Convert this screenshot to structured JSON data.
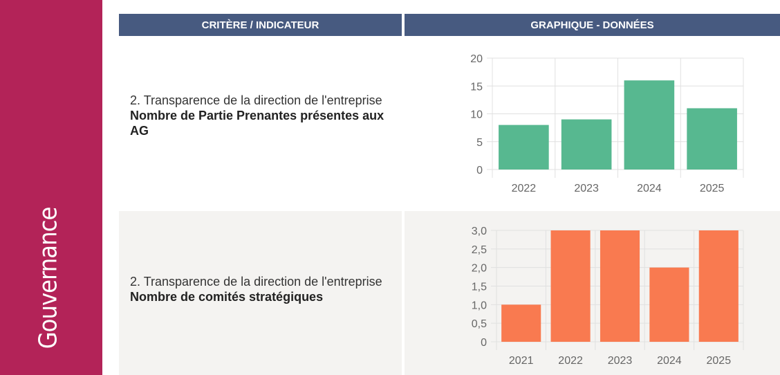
{
  "sidebar": {
    "label": "Gouvernance",
    "color": "#b32358"
  },
  "header": {
    "col1": "CRITÈRE / INDICATEUR",
    "col2": "GRAPHIQUE - DONNÉES",
    "color": "#475a80"
  },
  "rows": [
    {
      "criterion": "2. Transparence de la direction de l'entreprise",
      "indicator": "Nombre de Partie Prenantes présentes aux AG"
    },
    {
      "criterion": "2. Transparence de la direction de l'entreprise",
      "indicator": "Nombre de comités stratégiques"
    }
  ],
  "chart_data": [
    {
      "type": "bar",
      "categories": [
        "2022",
        "2023",
        "2024",
        "2025"
      ],
      "values": [
        8,
        9,
        16,
        11
      ],
      "ylim": [
        0,
        20
      ],
      "yticks": [
        "0",
        "5",
        "10",
        "15",
        "20"
      ],
      "color": "#57b890",
      "grid": true
    },
    {
      "type": "bar",
      "categories": [
        "2021",
        "2022",
        "2023",
        "2024",
        "2025"
      ],
      "values": [
        1,
        3,
        3,
        2,
        3
      ],
      "ylim": [
        0,
        3
      ],
      "yticks": [
        "0",
        "0,5",
        "1,0",
        "1,5",
        "2,0",
        "2,5",
        "3,0"
      ],
      "color": "#f97a50",
      "grid": true
    }
  ]
}
